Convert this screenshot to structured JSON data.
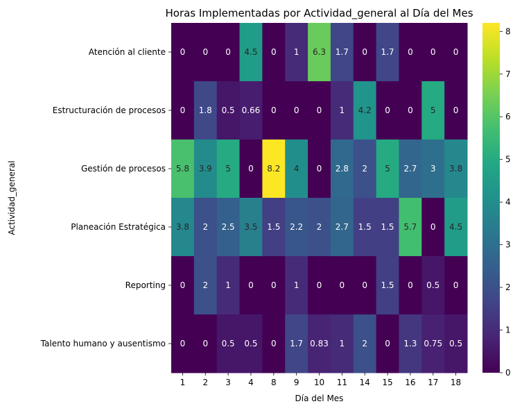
{
  "chart_data": {
    "type": "heatmap",
    "title": "Horas Implementadas por Actividad_general al Día del Mes",
    "xlabel": "Día del Mes",
    "ylabel": "Actividad_general",
    "x_categories": [
      "1",
      "2",
      "3",
      "4",
      "8",
      "9",
      "10",
      "11",
      "14",
      "15",
      "16",
      "17",
      "18"
    ],
    "y_categories": [
      "Atención al cliente",
      "Estructuración de procesos",
      "Gestión de procesos",
      "Planeación Estratégica",
      "Reporting",
      "Talento humano y ausentismo"
    ],
    "values": [
      [
        0,
        0,
        0,
        4.5,
        0,
        1,
        6.3,
        1.7,
        0,
        1.7,
        0,
        0,
        0
      ],
      [
        0,
        1.8,
        0.5,
        0.66,
        0,
        0,
        0,
        1,
        4.2,
        0,
        0,
        5,
        0
      ],
      [
        5.8,
        3.9,
        5,
        0,
        8.2,
        4,
        0,
        2.8,
        2,
        5,
        2.7,
        3,
        3.8
      ],
      [
        3.8,
        2,
        2.5,
        3.5,
        1.5,
        2.2,
        2,
        2.7,
        1.5,
        1.5,
        5.7,
        0,
        4.5
      ],
      [
        0,
        2,
        1,
        0,
        0,
        1,
        0,
        0,
        0,
        1.5,
        0,
        0.5,
        0
      ],
      [
        0,
        0,
        0.5,
        0.5,
        0,
        1.7,
        0.83,
        1,
        2,
        0,
        1.3,
        0.75,
        0.5
      ]
    ],
    "vmin": 0,
    "vmax": 8.2,
    "colormap": "viridis",
    "colorbar_ticks": [
      0,
      1,
      2,
      3,
      4,
      5,
      6,
      7,
      8
    ]
  }
}
